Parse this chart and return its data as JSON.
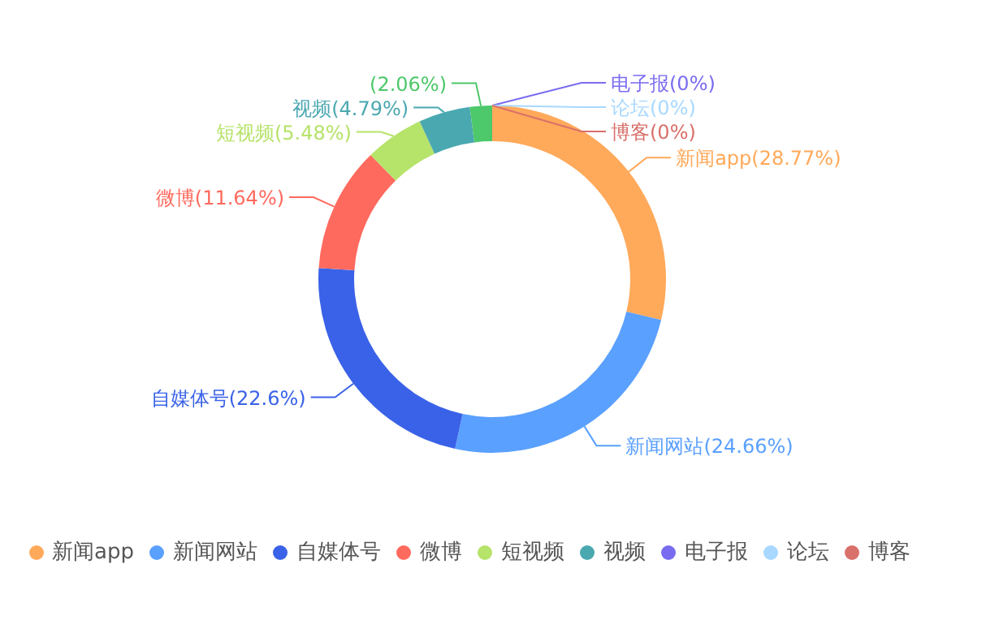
{
  "chart_data": {
    "type": "donut",
    "categories": [
      "新闻app",
      "新闻网站",
      "自媒体号",
      "微博",
      "短视频",
      "视频",
      null,
      "电子报",
      "论坛",
      "博客"
    ],
    "values": [
      28.77,
      24.66,
      22.6,
      11.64,
      5.48,
      4.79,
      2.06,
      0,
      0,
      0
    ],
    "colors": [
      "#ffa95a",
      "#5aa0ff",
      "#3a62e8",
      "#ff6a5e",
      "#b6e36a",
      "#4aa8b0",
      "#4dc86a",
      "#7a6cf0",
      "#a8d8ff",
      "#d9706a"
    ],
    "value_labels": [
      "(28.77%)",
      "(24.66%)",
      "(22.6%)",
      "(11.64%)",
      "(5.48%)",
      "(4.79%)",
      "(2.06%)",
      "(0%)",
      "(0%)",
      "(0%)"
    ],
    "legend": "bottom"
  }
}
